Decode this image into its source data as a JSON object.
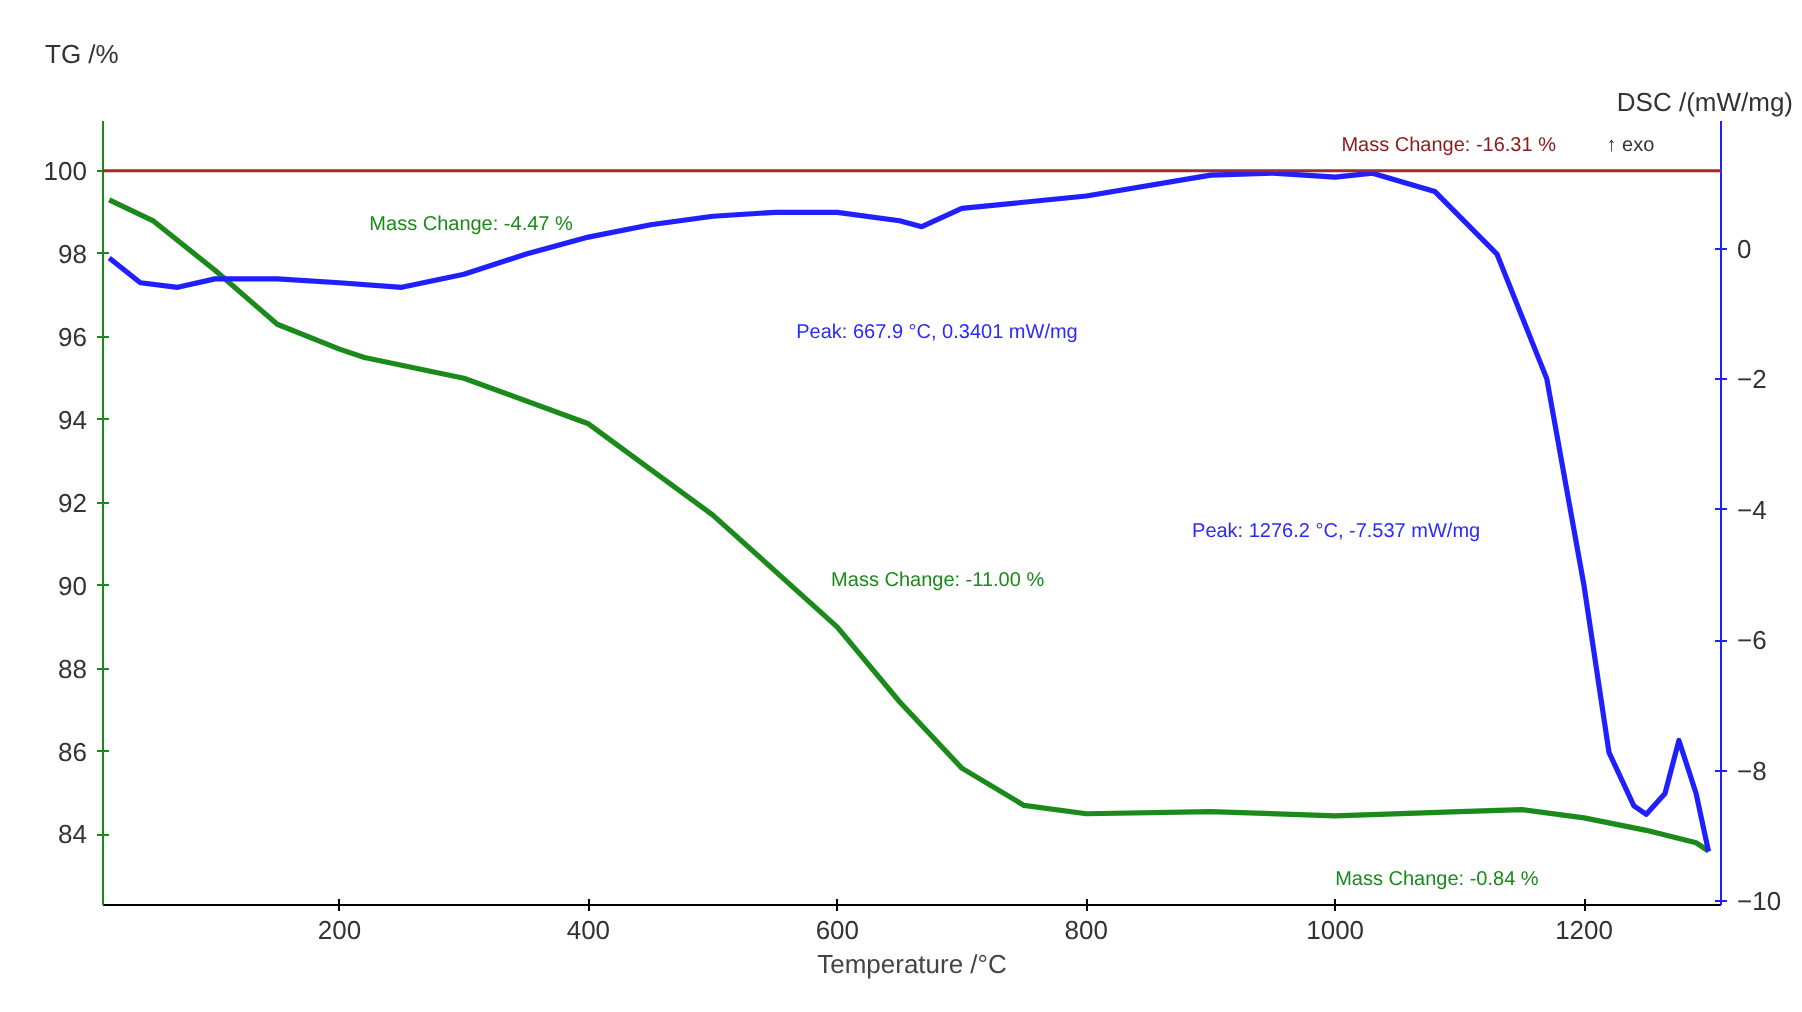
{
  "chart_data": {
    "type": "line",
    "xlabel": "Temperature /°C",
    "ylabel": "TG /%",
    "y2label": "DSC /(mW/mg)",
    "x": [
      15,
      50,
      100,
      150,
      200,
      220,
      300,
      400,
      500,
      600,
      650,
      700,
      750,
      800,
      900,
      1000,
      1100,
      1150,
      1200,
      1250,
      1290,
      1300
    ],
    "series": [
      {
        "color": "#1a8a1a",
        "values": [
          99.3,
          98.8,
          97.6,
          96.3,
          95.7,
          95.5,
          95.0,
          93.9,
          91.7,
          89.0,
          87.2,
          85.6,
          84.7,
          84.5,
          84.55,
          84.45,
          84.55,
          84.6,
          84.4,
          84.1,
          83.8,
          83.6
        ]
      },
      {
        "color": "#1f1fff",
        "axis": "y2",
        "x": [
          15,
          40,
          70,
          100,
          150,
          200,
          250,
          300,
          350,
          400,
          450,
          500,
          550,
          600,
          650,
          667.9,
          700,
          800,
          900,
          950,
          1000,
          1030,
          1080,
          1130,
          1170,
          1200,
          1220,
          1240,
          1250,
          1265,
          1276.2,
          1290,
          1300
        ],
        "values": [
          -0.14,
          -0.52,
          -0.59,
          -0.46,
          -0.46,
          -0.52,
          -0.59,
          -0.39,
          -0.08,
          0.18,
          0.37,
          0.5,
          0.56,
          0.56,
          0.43,
          0.34,
          0.62,
          0.81,
          1.13,
          1.16,
          1.1,
          1.16,
          0.88,
          -0.08,
          -1.99,
          -5.17,
          -7.72,
          -8.54,
          -8.67,
          -8.35,
          -7.537,
          -8.35,
          -9.24
        ]
      }
    ],
    "xlim": [
      10,
      1310
    ],
    "xticks": [
      200,
      400,
      600,
      800,
      1000,
      1200
    ],
    "ylim": [
      82.3,
      101.2
    ],
    "yticks": [
      84,
      86,
      88,
      90,
      92,
      94,
      96,
      98,
      100
    ],
    "y2lim": [
      -10.06,
      1.96
    ],
    "y2ticks": [
      -10,
      -8,
      -6,
      -4,
      -2,
      0
    ],
    "ref_lines": [
      {
        "axis": "y",
        "value": 100,
        "color": "#a52a2a"
      }
    ],
    "annotations": [
      "Peak: 667.9 °C, 0.3401 mW/mg",
      "Peak: 1276.2 °C, -7.537 mW/mg",
      "Mass Change: -4.47 %",
      "Mass Change: -11.00 %",
      "Mass Change: -0.84 %",
      "Mass Change: -16.31 %",
      "↑ exo"
    ],
    "grid": false,
    "marker": "none",
    "line_style": "solid"
  }
}
